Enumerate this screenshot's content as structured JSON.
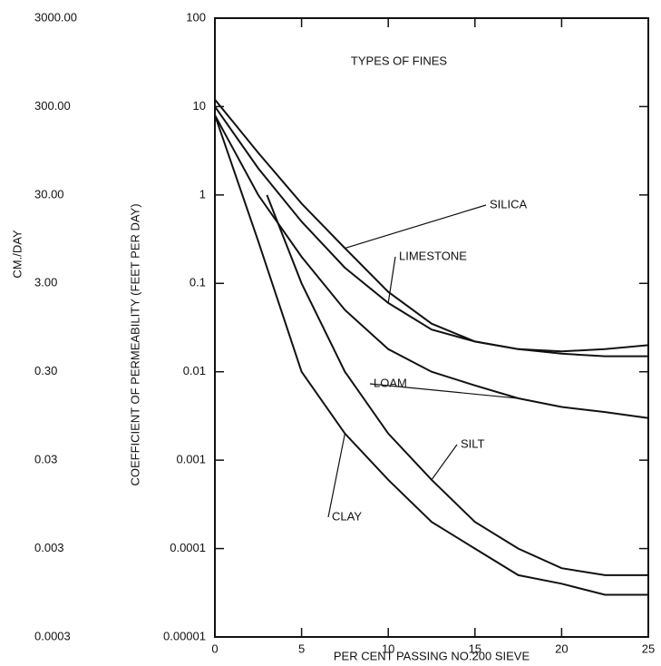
{
  "chart_data": {
    "type": "line",
    "title": "TYPES OF FINES",
    "x_label": "PER CENT PASSING NO.200 SIEVE",
    "y_label": "COEFFICIENT OF PERMEABILITY (FEET PER DAY)",
    "y2_label": "CM./DAY",
    "log_y": true,
    "xlim": [
      0,
      25
    ],
    "xticks": [
      0,
      5,
      10,
      15,
      20,
      25
    ],
    "ylim": [
      1e-05,
      100
    ],
    "yticks": [
      100,
      10,
      1,
      0.1,
      0.01,
      0.001,
      0.0001,
      1e-05
    ],
    "y2lim": [
      0.0003,
      3000
    ],
    "y2ticks": [
      {
        "value": 3000,
        "label": "3000.00"
      },
      {
        "value": 300,
        "label": "300.00"
      },
      {
        "value": 30,
        "label": "30.00"
      },
      {
        "value": 3,
        "label": "3.00"
      },
      {
        "value": 0.3,
        "label": "0.30"
      },
      {
        "value": 0.03,
        "label": "0.03"
      },
      {
        "value": 0.003,
        "label": "0.003"
      },
      {
        "value": 0.0003,
        "label": "0.0003"
      }
    ],
    "series": [
      {
        "name": "SILICA",
        "color": "#111111",
        "x": [
          0,
          2.5,
          5,
          7.5,
          10,
          12.5,
          15,
          17.5,
          20,
          22.5,
          25
        ],
        "values": [
          12,
          3,
          0.8,
          0.25,
          0.08,
          0.035,
          0.022,
          0.018,
          0.017,
          0.018,
          0.02
        ]
      },
      {
        "name": "LIMESTONE",
        "color": "#111111",
        "x": [
          0,
          2.5,
          5,
          7.5,
          10,
          12.5,
          15,
          17.5,
          20,
          22.5,
          25
        ],
        "values": [
          10,
          2,
          0.5,
          0.15,
          0.06,
          0.03,
          0.022,
          0.018,
          0.016,
          0.015,
          0.015
        ]
      },
      {
        "name": "LOAM",
        "color": "#111111",
        "x": [
          0,
          2.5,
          5,
          7.5,
          10,
          12.5,
          15,
          17.5,
          20,
          22.5,
          25
        ],
        "values": [
          8,
          1,
          0.2,
          0.05,
          0.018,
          0.01,
          0.007,
          0.005,
          0.004,
          0.0035,
          0.003
        ]
      },
      {
        "name": "SILT",
        "color": "#111111",
        "x": [
          3,
          5,
          7.5,
          10,
          12.5,
          15,
          17.5,
          20,
          22.5,
          25
        ],
        "values": [
          1,
          0.1,
          0.01,
          0.002,
          0.0006,
          0.0002,
          0.0001,
          6e-05,
          5e-05,
          5e-05
        ]
      },
      {
        "name": "CLAY",
        "color": "#111111",
        "x": [
          0,
          2.5,
          5,
          7.5,
          10,
          12.5,
          15,
          17.5,
          20,
          22.5,
          25
        ],
        "values": [
          8,
          0.3,
          0.01,
          0.002,
          0.0006,
          0.0002,
          0.0001,
          5e-05,
          4e-05,
          3e-05,
          3e-05
        ]
      }
    ]
  }
}
